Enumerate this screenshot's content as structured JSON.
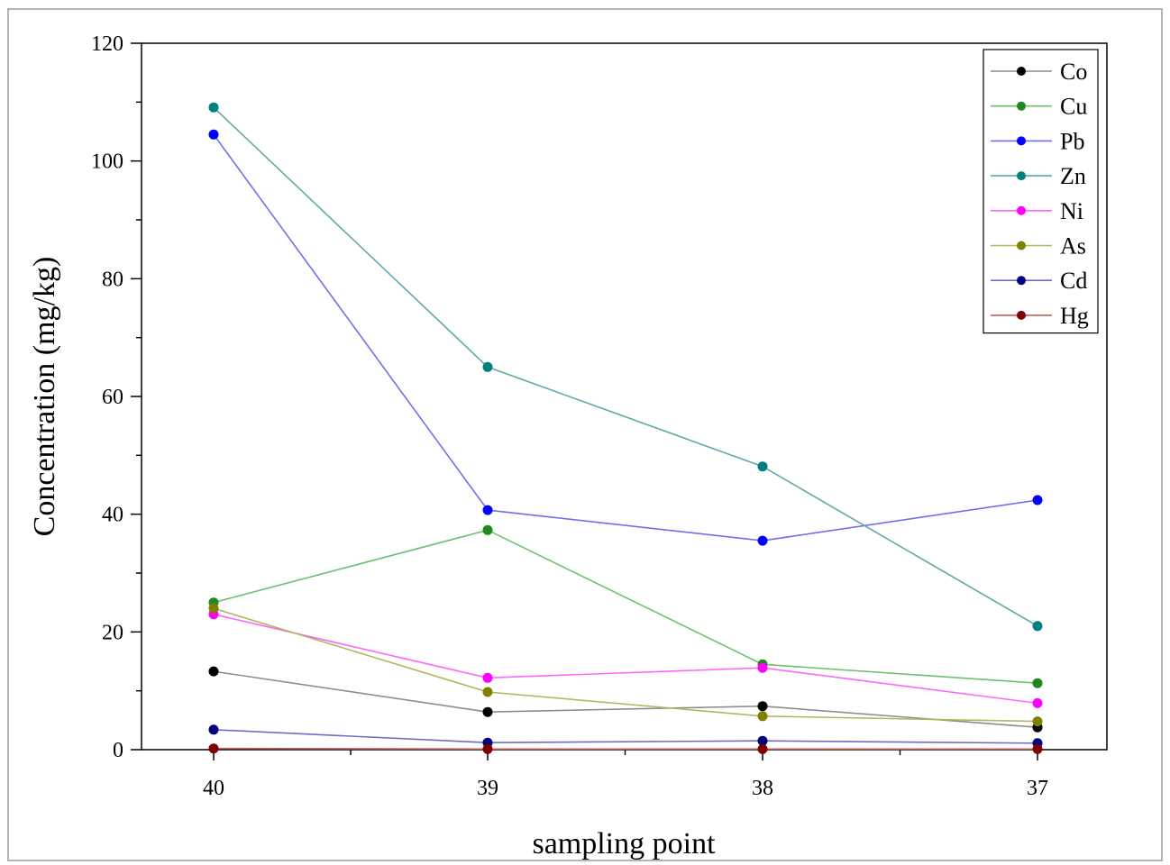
{
  "chart_data": {
    "type": "line",
    "title": "",
    "xlabel": "sampling point",
    "ylabel": "Concentration (mg/kg)",
    "categories": [
      "40",
      "39",
      "38",
      "37"
    ],
    "ylim": [
      0,
      120
    ],
    "yticks": [
      0,
      20,
      40,
      60,
      80,
      100,
      120
    ],
    "grid": false,
    "legend_position": "top-right",
    "series": [
      {
        "name": "Co",
        "color": "#000000",
        "line_color": "#8c8c8c",
        "values": [
          13.3,
          6.4,
          7.4,
          3.8
        ]
      },
      {
        "name": "Cu",
        "color": "#1e8a1e",
        "line_color": "#6fbf6f",
        "values": [
          25.0,
          37.3,
          14.5,
          11.3
        ]
      },
      {
        "name": "Pb",
        "color": "#0000ff",
        "line_color": "#7070ee",
        "values": [
          104.5,
          40.7,
          35.5,
          42.4
        ]
      },
      {
        "name": "Zn",
        "color": "#008080",
        "line_color": "#5fa8a8",
        "values": [
          109.1,
          65.0,
          48.1,
          21.0
        ]
      },
      {
        "name": "Ni",
        "color": "#ff00ff",
        "line_color": "#ff66ff",
        "values": [
          23.0,
          12.2,
          13.9,
          7.9
        ]
      },
      {
        "name": "As",
        "color": "#808000",
        "line_color": "#b5b560",
        "values": [
          24.0,
          9.8,
          5.7,
          4.8
        ]
      },
      {
        "name": "Cd",
        "color": "#000080",
        "line_color": "#6c6cc8",
        "values": [
          3.4,
          1.2,
          1.5,
          1.1
        ]
      },
      {
        "name": "Hg",
        "color": "#800000",
        "line_color": "#c06060",
        "values": [
          0.2,
          0.1,
          0.1,
          0.1
        ]
      }
    ]
  }
}
